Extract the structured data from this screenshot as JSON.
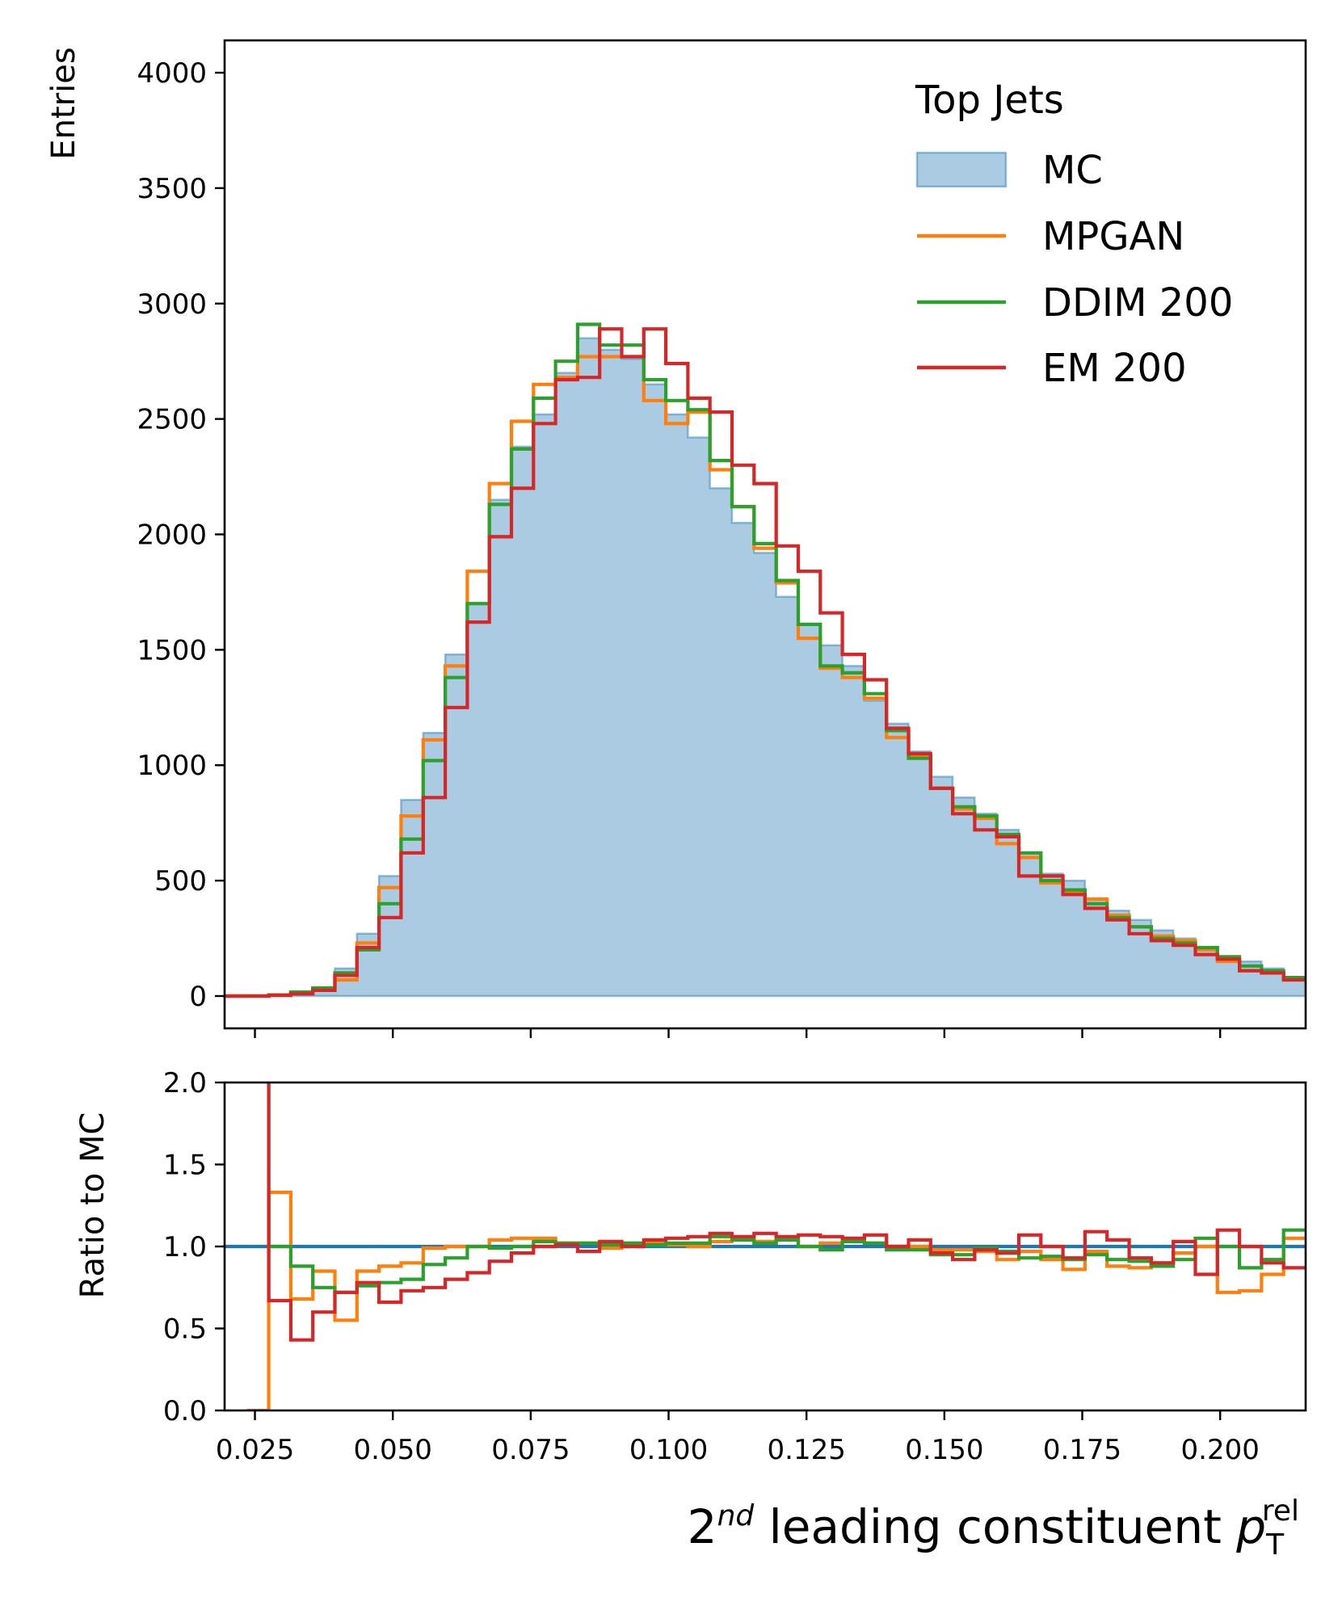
{
  "chart_data": [
    {
      "type": "histogram",
      "panel": "main",
      "ylabel": "Entries",
      "xlim": [
        0.0195,
        0.2155
      ],
      "ylim": [
        -140,
        4140
      ],
      "yticks": [
        0,
        500,
        1000,
        1500,
        2000,
        2500,
        3000,
        3500,
        4000
      ],
      "xticks": [
        0.025,
        0.05,
        0.075,
        0.1,
        0.125,
        0.15,
        0.175,
        0.2
      ],
      "bins": {
        "start": 0.0195,
        "width": 0.004,
        "count": 49
      },
      "legend": {
        "title": "Top Jets",
        "placement": "top-right"
      },
      "series": [
        {
          "name": "MC",
          "style": "filled",
          "color": "#1f77b4",
          "values": [
            0,
            0,
            5,
            15,
            35,
            120,
            270,
            520,
            850,
            1140,
            1480,
            1700,
            2150,
            2380,
            2520,
            2700,
            2850,
            2800,
            2760,
            2650,
            2520,
            2420,
            2200,
            2050,
            1920,
            1730,
            1610,
            1520,
            1430,
            1280,
            1180,
            1060,
            950,
            860,
            790,
            720,
            620,
            530,
            500,
            420,
            370,
            330,
            285,
            250,
            200,
            170,
            150,
            120,
            80
          ]
        },
        {
          "name": "MPGAN",
          "style": "step",
          "color": "#ff7f0e",
          "values": [
            0,
            0,
            5,
            14,
            32,
            70,
            230,
            470,
            780,
            1110,
            1430,
            1840,
            2220,
            2490,
            2650,
            2680,
            2770,
            2770,
            2770,
            2580,
            2480,
            2530,
            2280,
            2120,
            1940,
            1790,
            1550,
            1420,
            1380,
            1290,
            1120,
            1040,
            900,
            810,
            770,
            660,
            600,
            490,
            450,
            420,
            350,
            300,
            260,
            240,
            200,
            150,
            110,
            100,
            80
          ]
        },
        {
          "name": "DDIM 200",
          "style": "step",
          "color": "#2ca02c",
          "values": [
            0,
            0,
            5,
            17,
            35,
            100,
            200,
            400,
            680,
            1020,
            1380,
            1700,
            2130,
            2370,
            2590,
            2750,
            2910,
            2820,
            2820,
            2670,
            2580,
            2540,
            2320,
            2120,
            1960,
            1800,
            1610,
            1430,
            1400,
            1310,
            1150,
            1030,
            900,
            820,
            780,
            700,
            620,
            500,
            460,
            400,
            340,
            300,
            250,
            230,
            210,
            170,
            130,
            110,
            80
          ]
        },
        {
          "name": "EM 200",
          "style": "step",
          "color": "#d62728",
          "values": [
            0,
            0,
            3,
            10,
            25,
            90,
            210,
            340,
            620,
            860,
            1250,
            1620,
            1990,
            2200,
            2480,
            2670,
            2680,
            2890,
            2770,
            2890,
            2740,
            2590,
            2530,
            2300,
            2220,
            1950,
            1840,
            1660,
            1480,
            1370,
            1160,
            1050,
            900,
            790,
            720,
            690,
            520,
            520,
            440,
            380,
            330,
            270,
            240,
            220,
            180,
            160,
            110,
            100,
            70
          ]
        }
      ]
    },
    {
      "type": "line",
      "panel": "ratio",
      "xlabel": "2nd leading constituent pT rel",
      "ylabel": "Ratio to MC",
      "xlim": [
        0.0195,
        0.2155
      ],
      "ylim": [
        0.0,
        2.0
      ],
      "yticks": [
        0.0,
        0.5,
        1.0,
        1.5,
        2.0
      ],
      "xticks": [
        0.025,
        0.05,
        0.075,
        0.1,
        0.125,
        0.15,
        0.175,
        0.2
      ],
      "bins": {
        "start": 0.0195,
        "width": 0.004,
        "count": 49
      },
      "reference": {
        "value": 1.0,
        "color": "#1f77b4"
      },
      "series": [
        {
          "name": "MPGAN",
          "color": "#ff7f0e",
          "values": [
            null,
            0,
            1.33,
            0.68,
            0.85,
            0.55,
            0.85,
            0.88,
            0.9,
            0.99,
            1.0,
            1.0,
            1.04,
            1.05,
            1.05,
            1.02,
            1.02,
            0.99,
            1.02,
            1.02,
            1.01,
            1.0,
            1.03,
            1.04,
            1.03,
            1.04,
            1.0,
            1.02,
            1.03,
            1.02,
            1.0,
            1.0,
            0.98,
            0.98,
            0.97,
            0.92,
            0.97,
            0.92,
            0.86,
            0.97,
            0.88,
            0.87,
            0.9,
            0.96,
            1.0,
            0.72,
            0.73,
            0.83,
            1.05
          ]
        },
        {
          "name": "DDIM 200",
          "color": "#2ca02c",
          "values": [
            null,
            3,
            1.0,
            0.88,
            0.75,
            0.72,
            0.76,
            0.78,
            0.8,
            0.89,
            0.93,
            1.0,
            0.99,
            1.0,
            1.03,
            1.02,
            1.02,
            1.01,
            1.02,
            1.01,
            1.02,
            1.02,
            1.06,
            1.04,
            1.02,
            1.04,
            1.0,
            0.98,
            1.03,
            1.02,
            0.98,
            0.98,
            0.95,
            0.95,
            0.99,
            0.97,
            0.93,
            0.94,
            0.92,
            0.95,
            0.92,
            0.91,
            0.88,
            0.92,
            1.05,
            1.0,
            0.87,
            0.92,
            1.1
          ]
        },
        {
          "name": "EM 200",
          "color": "#d62728",
          "values": [
            null,
            3,
            0.67,
            0.43,
            0.6,
            0.72,
            0.78,
            0.66,
            0.73,
            0.75,
            0.8,
            0.84,
            0.91,
            0.96,
            1.0,
            1.01,
            0.97,
            1.03,
            1.0,
            1.04,
            1.05,
            1.06,
            1.08,
            1.06,
            1.08,
            1.06,
            1.07,
            1.06,
            1.05,
            1.07,
            1.0,
            1.04,
            0.96,
            0.92,
            0.98,
            0.96,
            1.07,
            1.0,
            0.93,
            1.09,
            1.04,
            0.93,
            0.9,
            1.03,
            0.83,
            1.1,
            1.0,
            0.9,
            0.87
          ]
        }
      ]
    }
  ]
}
